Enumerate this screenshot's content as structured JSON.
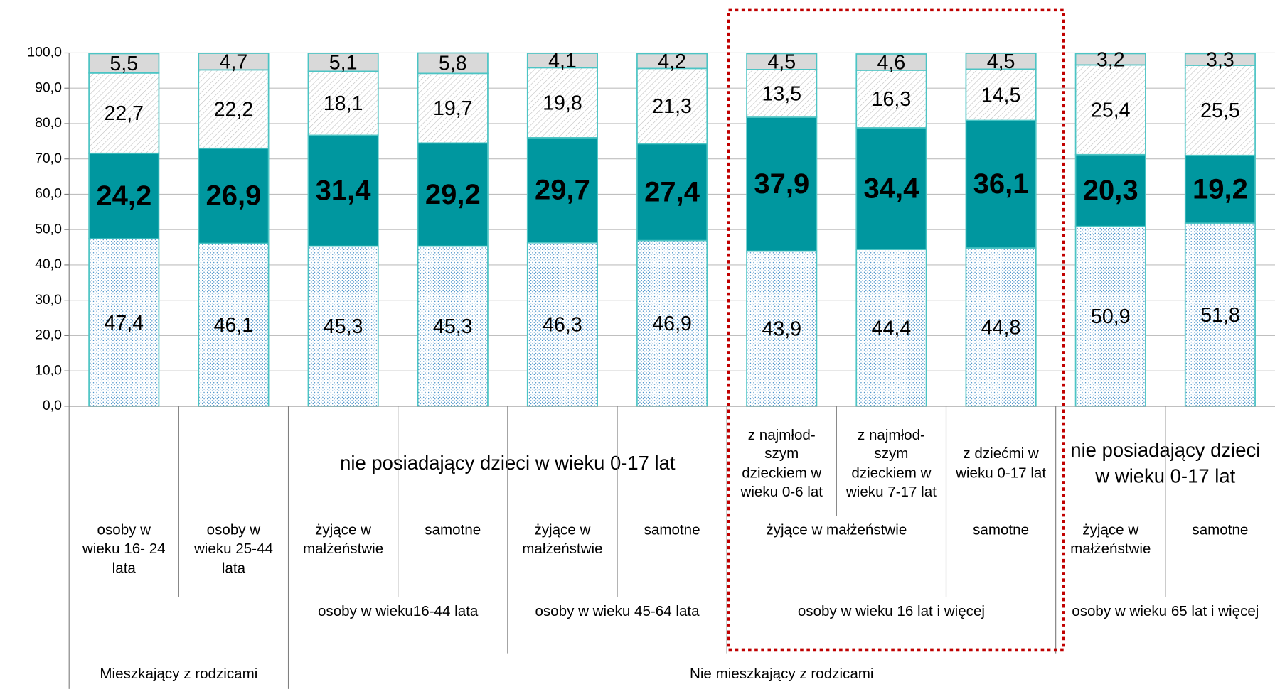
{
  "chart_data": {
    "type": "stacked_bar",
    "ylim": [
      0,
      100
    ],
    "yticks": [
      {
        "value": 0,
        "label": "0,0"
      },
      {
        "value": 10,
        "label": "10,0"
      },
      {
        "value": 20,
        "label": "20,0"
      },
      {
        "value": 30,
        "label": "30,0"
      },
      {
        "value": 40,
        "label": "40,0"
      },
      {
        "value": 50,
        "label": "50,0"
      },
      {
        "value": 60,
        "label": "60,0"
      },
      {
        "value": 70,
        "label": "70,0"
      },
      {
        "value": 80,
        "label": "80,0"
      },
      {
        "value": 90,
        "label": "90,0"
      },
      {
        "value": 100,
        "label": "100,0"
      }
    ],
    "grid": true,
    "series": [
      {
        "color": "#2a7fc0",
        "pattern": "dots",
        "values": [
          47.4,
          46.1,
          45.3,
          45.3,
          46.3,
          46.9,
          43.9,
          44.4,
          44.8,
          50.9,
          51.8
        ],
        "value_labels": [
          "47,4",
          "46,1",
          "45,3",
          "45,3",
          "46,3",
          "46,9",
          "43,9",
          "44,4",
          "44,8",
          "50,9",
          "51,8"
        ]
      },
      {
        "color": "#00979f",
        "pattern": "solid",
        "values": [
          24.2,
          26.9,
          31.4,
          29.2,
          29.7,
          27.4,
          37.9,
          34.4,
          36.1,
          20.3,
          19.2
        ],
        "value_labels": [
          "24,2",
          "26,9",
          "31,4",
          "29,2",
          "29,7",
          "27,4",
          "37,9",
          "34,4",
          "36,1",
          "20,3",
          "19,2"
        ]
      },
      {
        "color": "#a0a0a0",
        "pattern": "hatch",
        "values": [
          22.7,
          22.2,
          18.1,
          19.7,
          19.8,
          21.3,
          13.5,
          16.3,
          14.5,
          25.4,
          25.5
        ],
        "value_labels": [
          "22,7",
          "22,2",
          "18,1",
          "19,7",
          "19,8",
          "21,3",
          "13,5",
          "16,3",
          "14,5",
          "25,4",
          "25,5"
        ]
      },
      {
        "color": "#d9d9d9",
        "pattern": "solid",
        "values": [
          5.5,
          4.7,
          5.1,
          5.8,
          4.1,
          4.2,
          4.5,
          4.6,
          4.5,
          3.2,
          3.3
        ],
        "value_labels": [
          "5,5",
          "4,7",
          "5,1",
          "5,8",
          "4,1",
          "4,2",
          "4,5",
          "4,6",
          "4,5",
          "3,2",
          "3,3"
        ]
      }
    ],
    "category_levels": [
      [
        {
          "label": null,
          "span": 2
        },
        {
          "label": "nie posiadający dzieci w wieku 0-17 lat",
          "span": 4
        },
        {
          "label": "z najmłod-szym dzieckiem w wieku 0-6 lat",
          "span": 1
        },
        {
          "label": "z najmłod-szym dzieckiem w wieku 7-17 lat",
          "span": 1
        },
        {
          "label": "z dziećmi w wieku 0-17 lat",
          "span": 1
        },
        {
          "label": "nie posiadający dzieci w wieku 0-17 lat",
          "span": 2
        }
      ],
      [
        {
          "label": "osoby w wieku 16- 24 lata",
          "span": 1
        },
        {
          "label": "osoby w wieku 25-44 lata",
          "span": 1
        },
        {
          "label": "żyjące w małżeństwie",
          "span": 1
        },
        {
          "label": "samotne",
          "span": 1
        },
        {
          "label": "żyjące w małżeństwie",
          "span": 1
        },
        {
          "label": "samotne",
          "span": 1
        },
        {
          "label": "żyjące w małżeństwie",
          "span": 2
        },
        {
          "label": "samotne",
          "span": 1
        },
        {
          "label": "żyjące w małżeństwie",
          "span": 1
        },
        {
          "label": "samotne",
          "span": 1
        }
      ],
      [
        {
          "label": null,
          "span": 2
        },
        {
          "label": "osoby w wieku16-44 lata",
          "span": 2
        },
        {
          "label": "osoby w wieku 45-64 lata",
          "span": 2
        },
        {
          "label": "osoby w wieku 16 lat i więcej",
          "span": 3
        },
        {
          "label": "osoby w wieku 65 lat i więcej",
          "span": 2
        }
      ],
      [
        {
          "label": "Mieszkający z rodzicami",
          "span": 2
        },
        {
          "label": "Nie mieszkający z rodzicami",
          "span": 9
        }
      ]
    ]
  }
}
